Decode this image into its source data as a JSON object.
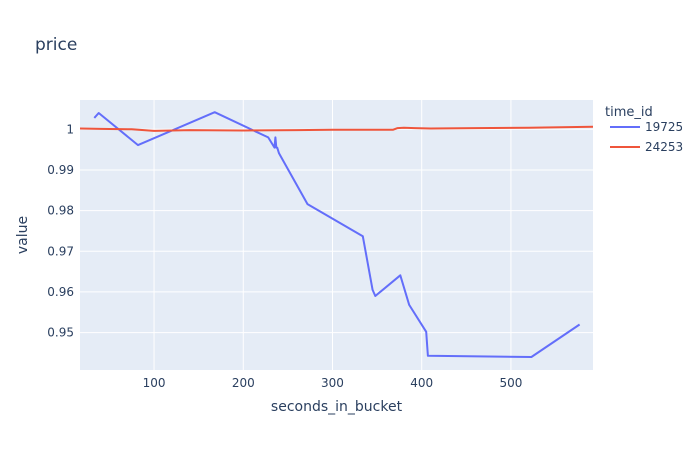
{
  "chart_data": {
    "type": "line",
    "title": "price",
    "xlabel": "seconds_in_bucket",
    "ylabel": "value",
    "xlim": [
      17,
      592
    ],
    "ylim": [
      0.9408,
      1.0072
    ],
    "x_ticks": [
      100,
      200,
      300,
      400,
      500
    ],
    "x_tick_labels": [
      "100",
      "200",
      "300",
      "400",
      "500"
    ],
    "y_ticks": [
      0.95,
      0.96,
      0.97,
      0.98,
      0.99,
      1.0
    ],
    "y_tick_labels": [
      "0.95",
      "0.96",
      "0.97",
      "0.98",
      "0.99",
      "1"
    ],
    "grid": true,
    "legend_title": "time_id",
    "legend_position": "right",
    "series": [
      {
        "name": "19725",
        "color": "#636efa",
        "x": [
          33,
          38,
          82,
          168,
          228,
          235,
          236,
          237,
          238,
          240,
          272,
          334,
          345,
          348,
          376,
          386,
          405,
          407,
          523,
          577
        ],
        "y": [
          1.0028,
          1.004,
          0.9961,
          1.0042,
          0.998,
          0.9955,
          0.998,
          0.9955,
          0.9955,
          0.9941,
          0.9816,
          0.9737,
          0.9605,
          0.959,
          0.9641,
          0.9568,
          0.9502,
          0.9443,
          0.944,
          0.952
        ]
      },
      {
        "name": "24253",
        "color": "#ef553b",
        "x": [
          17,
          40,
          75,
          100,
          140,
          200,
          260,
          300,
          340,
          368,
          373,
          380,
          392,
          410,
          460,
          520,
          592
        ],
        "y": [
          1.0002,
          1.0001,
          1.0,
          0.9996,
          0.9998,
          0.9997,
          0.9998,
          0.9999,
          0.9999,
          0.9999,
          1.0003,
          1.0004,
          1.0003,
          1.0002,
          1.0003,
          1.0004,
          1.0006
        ]
      }
    ]
  }
}
